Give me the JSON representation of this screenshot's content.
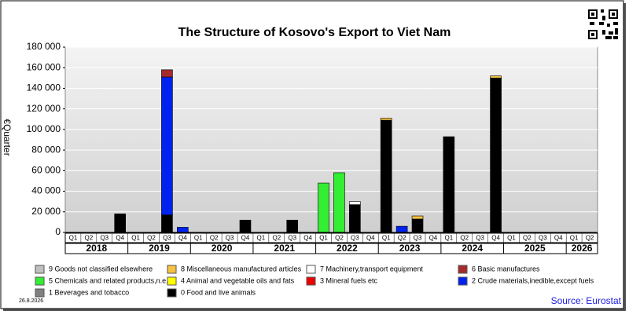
{
  "chart_data": {
    "type": "stacked_bar",
    "title": "The Structure of Kosovo's Export to Viet Nam",
    "y_label": "€Quarter",
    "date": "26.8.2026",
    "source": "Source: Eurostat",
    "categories": [
      "Q1",
      "Q2",
      "Q3",
      "Q4",
      "Q1",
      "Q2",
      "Q3",
      "Q4",
      "Q1",
      "Q2",
      "Q3",
      "Q4",
      "Q1",
      "Q2",
      "Q3",
      "Q4",
      "Q1",
      "Q2",
      "Q3",
      "Q4",
      "Q1",
      "Q2",
      "Q3",
      "Q4",
      "Q1",
      "Q2",
      "Q3",
      "Q4",
      "Q1",
      "Q2",
      "Q3",
      "Q4",
      "Q1",
      "Q2"
    ],
    "years": [
      "2018",
      "2019",
      "2020",
      "2021",
      "2022",
      "2023",
      "2024",
      "2025",
      "2026"
    ],
    "ylim": [
      0,
      180000
    ],
    "yticks": [
      0,
      {
        "value": 20000,
        "label": "20 000"
      },
      {
        "value": 40000,
        "label": "40 000"
      },
      {
        "value": 60000,
        "label": "60 000"
      },
      {
        "value": 80000,
        "label": "80 000"
      },
      {
        "value": 100000,
        "label": "100 000"
      },
      {
        "value": 120000,
        "label": "120 000"
      },
      {
        "value": 140000,
        "label": "140 000"
      },
      {
        "value": 160000,
        "label": "160 000"
      },
      {
        "value": 180000,
        "label": "180 000"
      }
    ],
    "grid": true,
    "series": [
      {
        "name": "9 Goods not classified elsewhere",
        "color": "#c0c0c0",
        "values": [
          0,
          0,
          0,
          0,
          0,
          0,
          0,
          0,
          0,
          0,
          0,
          0,
          0,
          0,
          0,
          0,
          0,
          0,
          0,
          0,
          0,
          0,
          0,
          0,
          0,
          0,
          0,
          0,
          0,
          0,
          0,
          0,
          0,
          0
        ]
      },
      {
        "name": "8 Miscellaneous manufactured articles",
        "color": "#f5c242",
        "values": [
          0,
          0,
          0,
          0,
          0,
          0,
          0,
          0,
          0,
          0,
          0,
          0,
          0,
          0,
          0,
          0,
          0,
          0,
          0,
          0,
          2000,
          0,
          3000,
          0,
          0,
          0,
          0,
          2000,
          0,
          0,
          0,
          0,
          0,
          0
        ]
      },
      {
        "name": "7 Machinery,transport equipment",
        "color": "#ffffff",
        "values": [
          0,
          0,
          0,
          0,
          0,
          0,
          0,
          0,
          0,
          0,
          0,
          0,
          0,
          0,
          0,
          0,
          0,
          0,
          3000,
          0,
          0,
          0,
          0,
          0,
          0,
          0,
          0,
          0,
          0,
          0,
          0,
          0,
          0,
          0
        ]
      },
      {
        "name": "6 Basic manufactures",
        "color": "#a52a2a",
        "values": [
          0,
          0,
          0,
          0,
          0,
          0,
          7000,
          0,
          0,
          0,
          0,
          0,
          0,
          0,
          0,
          0,
          0,
          0,
          0,
          0,
          0,
          0,
          0,
          0,
          0,
          0,
          0,
          0,
          0,
          0,
          0,
          0,
          0,
          0
        ]
      },
      {
        "name": "5 Chemicals and related products,n.e.s.",
        "color": "#33ee33",
        "values": [
          0,
          0,
          0,
          0,
          0,
          0,
          0,
          0,
          0,
          0,
          0,
          0,
          0,
          0,
          0,
          0,
          48000,
          58000,
          0,
          0,
          0,
          0,
          0,
          0,
          0,
          0,
          0,
          0,
          0,
          0,
          0,
          0,
          0,
          0
        ]
      },
      {
        "name": "4 Animal and vegetable oils and fats",
        "color": "#ffff00",
        "values": [
          0,
          0,
          0,
          0,
          0,
          0,
          0,
          0,
          0,
          0,
          0,
          0,
          0,
          0,
          0,
          0,
          0,
          0,
          0,
          0,
          0,
          0,
          0,
          0,
          0,
          0,
          0,
          0,
          0,
          0,
          0,
          0,
          0,
          0
        ]
      },
      {
        "name": "3 Mineral fuels etc",
        "color": "#ee0000",
        "values": [
          0,
          0,
          0,
          0,
          0,
          0,
          0,
          0,
          0,
          0,
          0,
          0,
          0,
          0,
          0,
          0,
          0,
          0,
          0,
          0,
          0,
          0,
          0,
          0,
          0,
          0,
          0,
          0,
          0,
          0,
          0,
          0,
          0,
          0
        ]
      },
      {
        "name": "2 Crude materials,inedible,except fuels",
        "color": "#0022ee",
        "values": [
          0,
          0,
          0,
          0,
          0,
          0,
          134000,
          5000,
          0,
          0,
          0,
          0,
          0,
          0,
          0,
          0,
          0,
          0,
          0,
          0,
          0,
          6000,
          0,
          0,
          0,
          0,
          0,
          0,
          0,
          0,
          0,
          0,
          0,
          0
        ]
      },
      {
        "name": "1 Beverages and tobacco",
        "color": "#808080",
        "values": [
          0,
          0,
          0,
          0,
          0,
          0,
          0,
          0,
          0,
          0,
          0,
          0,
          0,
          0,
          0,
          0,
          0,
          0,
          0,
          0,
          0,
          0,
          0,
          0,
          0,
          0,
          0,
          0,
          0,
          0,
          0,
          0,
          0,
          0
        ]
      },
      {
        "name": "0 Food and live animals",
        "color": "#000000",
        "values": [
          0,
          0,
          0,
          18000,
          0,
          0,
          17000,
          0,
          0,
          0,
          0,
          12000,
          0,
          0,
          12000,
          0,
          0,
          0,
          27000,
          0,
          109000,
          0,
          13000,
          0,
          93000,
          0,
          0,
          150000,
          0,
          0,
          0,
          0,
          0,
          0
        ]
      }
    ]
  }
}
